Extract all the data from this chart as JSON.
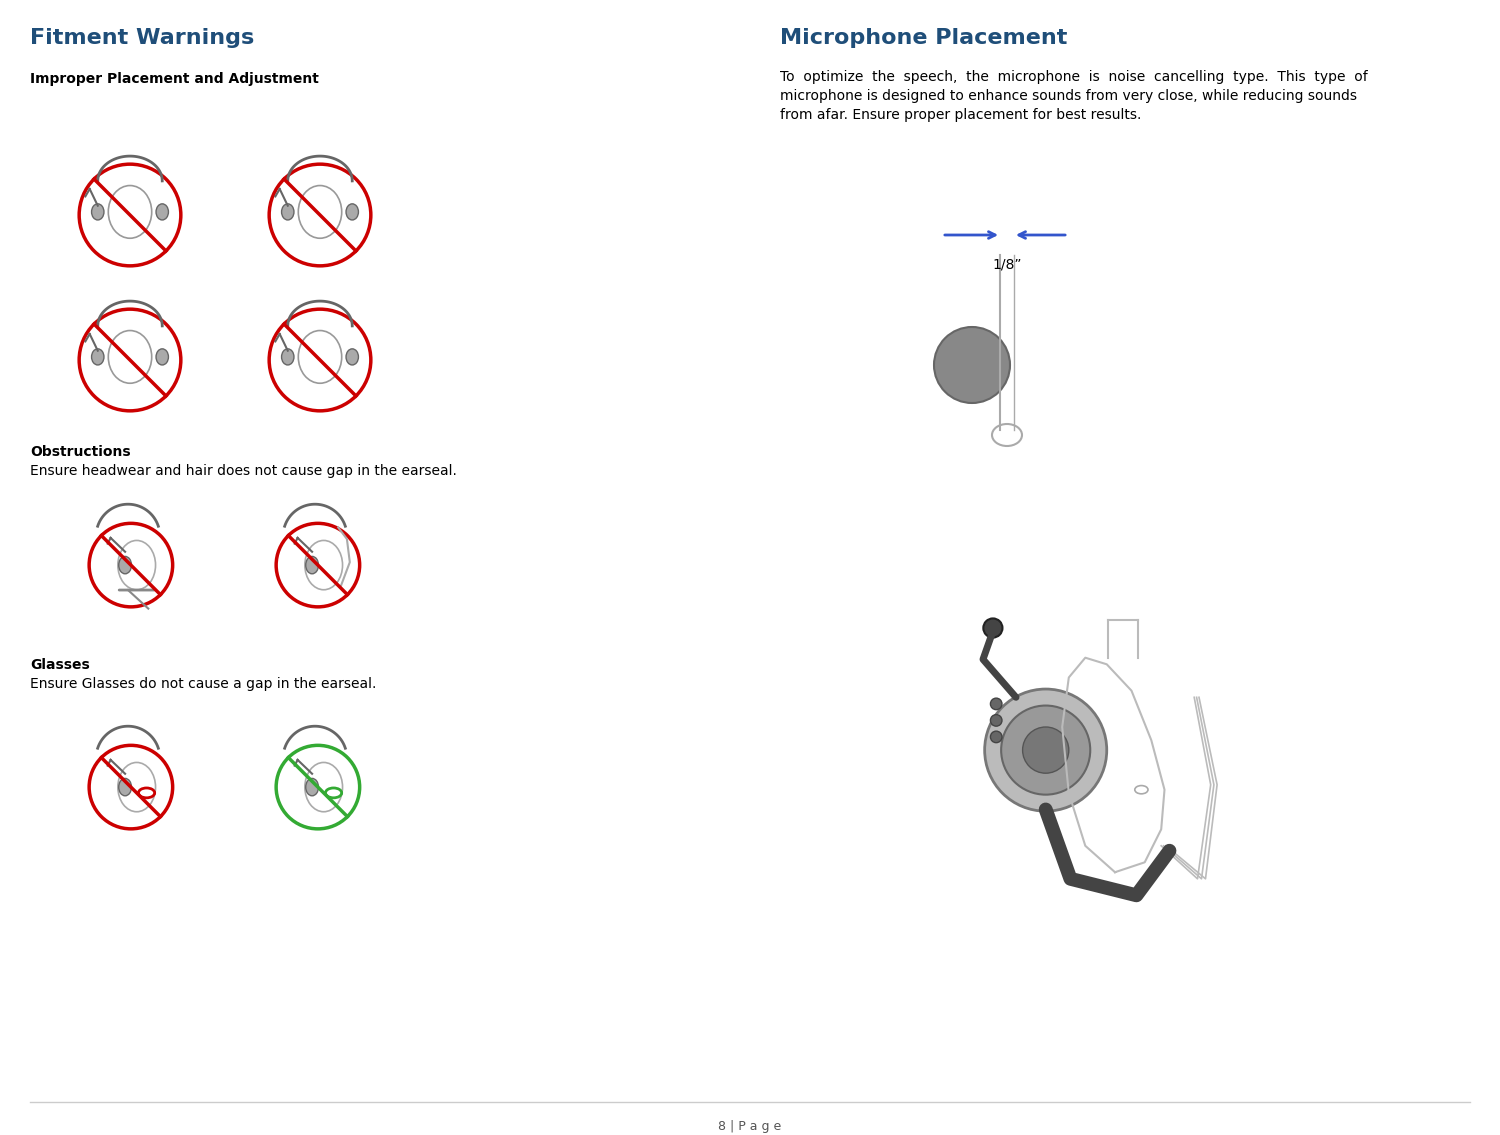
{
  "bg_color": "#ffffff",
  "title_left": "Fitment Warnings",
  "title_right": "Microphone Placement",
  "title_color": "#1f4e79",
  "title_fontsize": 16,
  "section1_heading": "Improper Placement and Adjustment",
  "section2_heading": "Obstructions",
  "section2_text": "Ensure headwear and hair does not cause gap in the earseal.",
  "section3_heading": "Glasses",
  "section3_text": "Ensure Glasses do not cause a gap in the earseal.",
  "right_line1": "To  optimize  the  speech,  the  microphone  is  noise  cancelling  type.  This  type  of",
  "right_line2": "microphone is designed to enhance sounds from very close, while reducing sounds",
  "right_line3": "from afar. Ensure proper placement for best results.",
  "mic_label": "1/8”",
  "footer_text": "8 | P a g e",
  "footer_line_color": "#cccccc",
  "text_color": "#000000",
  "heading_fontsize": 10,
  "body_fontsize": 10,
  "footer_fontsize": 9
}
